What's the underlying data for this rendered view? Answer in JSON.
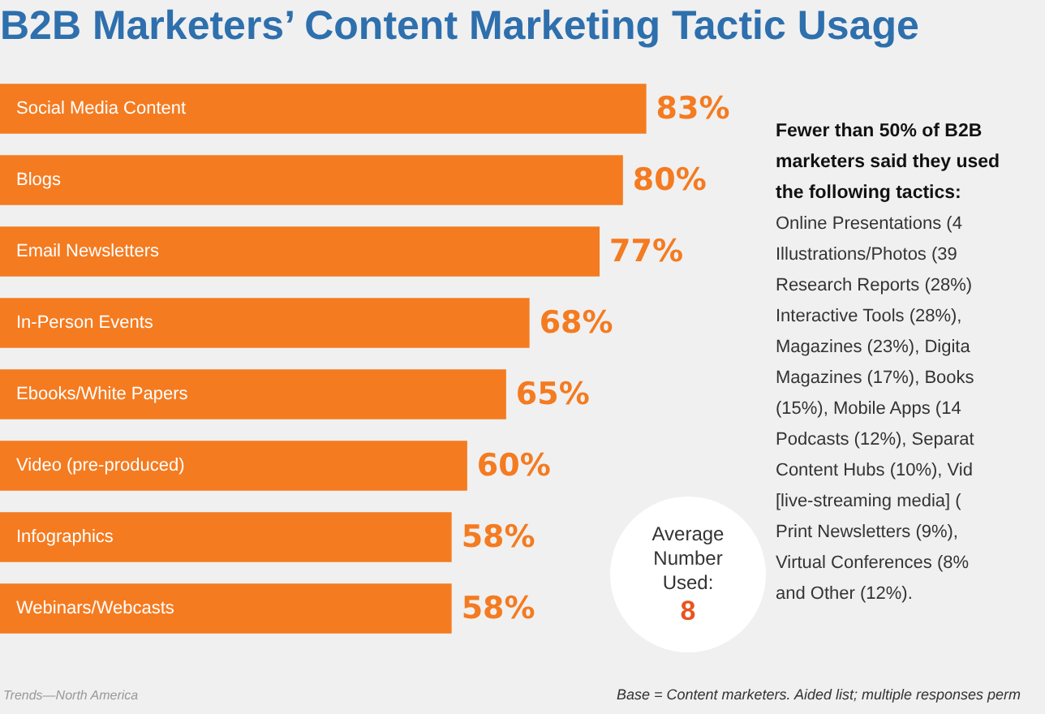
{
  "chart_data": {
    "type": "bar",
    "orientation": "horizontal",
    "title": "B2B Marketers’ Content Marketing Tactic Usage",
    "categories": [
      "Social Media Content",
      "Blogs",
      "Email Newsletters",
      "In-Person Events",
      "Ebooks/White Papers",
      "Video (pre-produced)",
      "Infographics",
      "Webinars/Webcasts"
    ],
    "values": [
      83,
      80,
      77,
      68,
      65,
      60,
      58,
      58
    ],
    "value_labels": [
      "83%",
      "80%",
      "77%",
      "68%",
      "65%",
      "60%",
      "58%",
      "58%"
    ],
    "color": "#f47b20",
    "legend": false,
    "annotations": [
      "Fewer than 50% of B2B marketers said they used the following tactics:",
      "Online Presentations (4",
      "Illustrations/Photos (39",
      "Research Reports (28%)",
      "Interactive Tools (28%),",
      "Magazines (23%), Digita",
      "Magazines (17%), Books",
      "(15%), Mobile Apps (14",
      "Podcasts (12%), Separat",
      "Content Hubs (10%), Vid",
      "[live-streaming media] (",
      "Print Newsletters (9%),",
      "Virtual Conferences (8%",
      "and Other (12%).",
      "Average Number Used:",
      "8",
      "Trends—North America",
      "Base = Content marketers. Aided list; multiple responses perm"
    ]
  }
}
